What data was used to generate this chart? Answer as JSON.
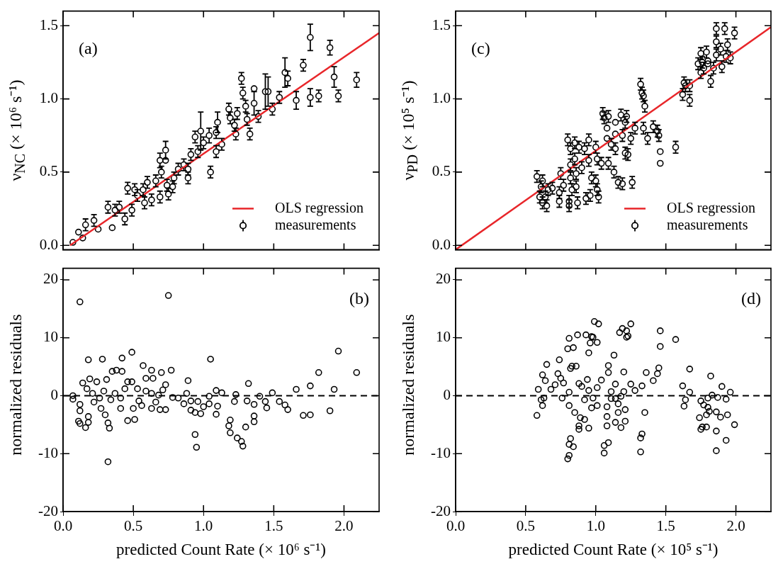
{
  "chart_data": [
    {
      "type": "scatter",
      "ylabel": "ν$_{NC}$ (× 10⁶ s⁻¹)",
      "annotations": [
        "(a)"
      ],
      "xlim": [
        0,
        2.25
      ],
      "ylim": [
        -0.03,
        1.6
      ],
      "xticks": [
        {
          "value": 0,
          "label": null
        },
        {
          "value": 0.5,
          "label": null
        },
        {
          "value": 1,
          "label": null
        },
        {
          "value": 1.5,
          "label": null
        },
        {
          "value": 2,
          "label": null
        }
      ],
      "yticks": [
        {
          "value": 0,
          "label": "0.0"
        },
        {
          "value": 0.5,
          "label": "0.5"
        },
        {
          "value": 1,
          "label": "1.0"
        },
        {
          "value": 1.5,
          "label": "1.5"
        }
      ],
      "tick_labels": "y",
      "legend": "bottom right",
      "series": [
        {
          "name": "OLS regression",
          "type": "line",
          "color": "#e8262a",
          "x": [
            0.05,
            2.25
          ],
          "values": [
            0,
            1.45
          ]
        },
        {
          "name": "measurements",
          "color": "#000000",
          "x": [
            0.07,
            0.11,
            0.16,
            0.14,
            0.22,
            0.25,
            0.32,
            0.35,
            0.37,
            0.4,
            0.44,
            0.46,
            0.49,
            0.51,
            0.53,
            0.57,
            0.58,
            0.6,
            0.63,
            0.66,
            0.69,
            0.69,
            0.7,
            0.73,
            0.73,
            0.74,
            0.75,
            0.78,
            0.79,
            0.82,
            0.86,
            0.89,
            0.89,
            0.91,
            0.94,
            0.96,
            0.98,
            1.0,
            1.04,
            1.05,
            1.09,
            1.09,
            1.1,
            1.13,
            1.18,
            1.19,
            1.22,
            1.23,
            1.24,
            1.27,
            1.28,
            1.3,
            1.31,
            1.33,
            1.36,
            1.36,
            1.39,
            1.44,
            1.46,
            1.49,
            1.54,
            1.58,
            1.6,
            1.66,
            1.71,
            1.76,
            1.76,
            1.82,
            1.9,
            1.93,
            1.96,
            2.09
          ],
          "values": [
            0.02,
            0.09,
            0.14,
            0.05,
            0.17,
            0.11,
            0.26,
            0.12,
            0.24,
            0.26,
            0.18,
            0.39,
            0.24,
            0.38,
            0.34,
            0.38,
            0.29,
            0.43,
            0.31,
            0.44,
            0.58,
            0.33,
            0.5,
            0.65,
            0.58,
            0.41,
            0.35,
            0.4,
            0.46,
            0.52,
            0.55,
            0.52,
            0.46,
            0.62,
            0.74,
            0.64,
            0.78,
            0.7,
            0.75,
            0.5,
            0.77,
            0.64,
            0.84,
            0.69,
            0.93,
            0.87,
            0.82,
            0.76,
            0.9,
            1.14,
            1.04,
            0.95,
            0.86,
            0.76,
            1.07,
            0.97,
            0.88,
            1.05,
            1.05,
            0.93,
            1.01,
            1.18,
            1.14,
            0.99,
            1.23,
            1.01,
            1.42,
            1.02,
            1.35,
            1.15,
            1.02,
            1.13
          ],
          "errors": [
            null,
            null,
            0.04,
            null,
            0.04,
            null,
            0.04,
            null,
            0.04,
            0.04,
            0.04,
            0.04,
            0.04,
            0.04,
            0.04,
            0.04,
            0.04,
            0.04,
            0.04,
            0.04,
            0.05,
            0.04,
            0.04,
            0.06,
            null,
            0.04,
            0.04,
            0.04,
            0.04,
            0.04,
            0.04,
            0.04,
            0.04,
            0.04,
            0.04,
            0.04,
            0.13,
            0.04,
            0.05,
            0.04,
            0.04,
            0.04,
            0.07,
            0.04,
            0.04,
            0.04,
            0.04,
            0.04,
            0.04,
            0.04,
            0.04,
            0.04,
            0.04,
            0.04,
            null,
            0.08,
            0.04,
            0.12,
            0.1,
            0.04,
            0.04,
            0.1,
            0.05,
            0.06,
            0.04,
            0.06,
            0.09,
            0.04,
            0.05,
            0.07,
            0.04,
            0.05
          ],
          "marker": "circle"
        }
      ]
    },
    {
      "type": "scatter",
      "ylabel": "normalized residuals",
      "xlabel": "predicted Count Rate (× 10⁶ s⁻¹)",
      "annotations": [
        "(b)"
      ],
      "xlim": [
        0,
        2.25
      ],
      "ylim": [
        -20,
        22
      ],
      "xticks": [
        {
          "value": 0,
          "label": "0.0"
        },
        {
          "value": 0.5,
          "label": "0.5"
        },
        {
          "value": 1,
          "label": "1.0"
        },
        {
          "value": 1.5,
          "label": "1.5"
        },
        {
          "value": 2,
          "label": "2.0"
        }
      ],
      "yticks": [
        -20,
        -10,
        0,
        10,
        20
      ],
      "marker": "circle",
      "ref_lines": [
        {
          "axis": "y",
          "value": 0,
          "color": "#000000",
          "line_style": "dashed"
        }
      ],
      "series": [
        {
          "color": "#000000",
          "x": [
            0.12,
            0.75,
            0.32,
            0.49,
            0.28,
            0.18,
            0.42,
            1.05,
            1.96,
            2.09,
            1.82,
            0.57,
            0.63,
            0.7,
            0.77,
            0.89,
            1.76,
            1.66,
            1.93,
            1.32,
            1.49,
            1.4,
            1.23,
            1.09,
            1.13,
            1.04,
            0.88,
            0.82,
            0.78,
            0.73,
            0.71,
            0.68,
            0.91,
            0.86,
            0.91,
            0.94,
            0.98,
            0.96,
            1.0,
            1.04,
            1.1,
            1.09,
            0.94,
            0.95,
            1.19,
            1.18,
            1.19,
            1.24,
            1.27,
            1.28,
            1.3,
            1.22,
            1.31,
            1.36,
            1.36,
            1.36,
            1.44,
            1.45,
            1.54,
            1.58,
            1.6,
            1.71,
            1.76,
            1.9,
            0.07,
            0.07,
            0.12,
            0.12,
            0.11,
            0.12,
            0.16,
            0.18,
            0.18,
            0.14,
            0.19,
            0.24,
            0.31,
            0.35,
            0.38,
            0.42,
            0.46,
            0.49,
            0.53,
            0.59,
            0.64,
            0.32,
            0.33,
            0.3,
            0.46,
            0.51,
            0.21,
            0.26,
            0.29,
            0.34,
            0.37,
            0.41,
            0.27,
            0.41,
            0.5,
            0.56,
            0.63,
            0.69,
            0.73,
            0.63,
            0.59,
            0.17,
            0.22,
            0.44,
            0.54,
            0.66
          ],
          "values": [
            16.2,
            17.3,
            -11.4,
            7.5,
            6.3,
            6.2,
            6.5,
            6.3,
            7.7,
            4.0,
            4.0,
            5.2,
            4.4,
            4.0,
            4.4,
            2.6,
            1.7,
            1.1,
            1.1,
            2.1,
            0.5,
            -0.1,
            0.2,
            0.9,
            0.5,
            -0.1,
            0.4,
            -0.4,
            -0.3,
            1.9,
            1.0,
            0.1,
            -0.9,
            -1.4,
            -2.5,
            -2.9,
            -3.1,
            -1.0,
            -1.9,
            -1.4,
            -1.8,
            -3.2,
            -6.7,
            -8.9,
            -4.2,
            -5.2,
            -6.4,
            -7.3,
            -7.9,
            -8.7,
            -5.4,
            -1.0,
            -0.9,
            -1.5,
            -3.5,
            -4.5,
            -1.0,
            -2.1,
            -1.0,
            -1.6,
            -2.4,
            -3.4,
            -3.3,
            -2.6,
            0,
            -0.6,
            -1.5,
            -2.6,
            -4.4,
            -4.8,
            -5.5,
            -4.6,
            -3.6,
            2.2,
            2.9,
            2.4,
            2.8,
            4.2,
            4.4,
            4.2,
            2.4,
            2.4,
            1.2,
            3.0,
            3.0,
            -4.7,
            -5.6,
            -3.3,
            -4.3,
            -4.1,
            0.4,
            -0.4,
            0.8,
            -0.7,
            0.4,
            -0.4,
            -2.2,
            -2.2,
            -2.2,
            -1.7,
            -2.2,
            -2.4,
            -2.4,
            0.4,
            0.8,
            1.2,
            -1.1,
            1.2,
            -0.9,
            -1.1
          ]
        }
      ]
    },
    {
      "type": "scatter",
      "ylabel": "ν$_{PD}$ (× 10⁵ s⁻¹)",
      "annotations": [
        "(c)"
      ],
      "xlim": [
        0,
        2.25
      ],
      "ylim": [
        -0.03,
        1.6
      ],
      "xticks": [
        {
          "value": 0,
          "label": null
        },
        {
          "value": 0.5,
          "label": null
        },
        {
          "value": 1,
          "label": null
        },
        {
          "value": 1.5,
          "label": null
        },
        {
          "value": 2,
          "label": null
        }
      ],
      "yticks": [
        {
          "value": 0,
          "label": "0.0"
        },
        {
          "value": 0.5,
          "label": "0.5"
        },
        {
          "value": 1,
          "label": "1.0"
        },
        {
          "value": 1.5,
          "label": "1.5"
        }
      ],
      "tick_labels": "y",
      "legend": "bottom right",
      "series": [
        {
          "name": "OLS regression",
          "type": "line",
          "color": "#e8262a",
          "x": [
            0,
            2.25
          ],
          "values": [
            -0.03,
            1.49
          ]
        },
        {
          "name": "measurements",
          "color": "#000000",
          "x": [
            0.58,
            0.6,
            0.62,
            0.62,
            0.65,
            0.64,
            0.61,
            0.66,
            0.69,
            0.74,
            0.74,
            0.75,
            0.77,
            0.8,
            0.81,
            0.81,
            0.82,
            0.82,
            0.82,
            0.83,
            0.85,
            0.85,
            0.86,
            0.86,
            0.87,
            0.88,
            0.9,
            0.92,
            0.93,
            0.95,
            0.95,
            0.96,
            0.97,
            1.0,
            1.0,
            1.01,
            1.01,
            1.02,
            1.04,
            1.05,
            1.06,
            1.08,
            1.08,
            1.09,
            1.09,
            1.11,
            1.13,
            1.14,
            1.14,
            1.14,
            1.16,
            1.18,
            1.19,
            1.19,
            1.21,
            1.22,
            1.21,
            1.23,
            1.25,
            1.26,
            1.28,
            1.32,
            1.33,
            1.34,
            1.34,
            1.35,
            1.37,
            1.41,
            1.44,
            1.45,
            1.46,
            1.46,
            1.57,
            1.62,
            1.63,
            1.64,
            1.67,
            1.67,
            1.73,
            1.75,
            1.75,
            1.76,
            1.77,
            1.79,
            1.8,
            1.8,
            1.82,
            1.84,
            1.86,
            1.86,
            1.86,
            1.89,
            1.9,
            1.92,
            1.93,
            1.94,
            1.96,
            1.99
          ],
          "values": [
            0.47,
            0.33,
            0.44,
            0.29,
            0.27,
            0.33,
            0.4,
            0.38,
            0.39,
            0.36,
            0.3,
            0.49,
            0.41,
            0.72,
            0.3,
            0.27,
            0.66,
            0.55,
            0.46,
            0.38,
            0.7,
            0.59,
            0.49,
            0.4,
            0.29,
            0.67,
            0.53,
            0.66,
            0.32,
            0.58,
            0.72,
            0.34,
            0.46,
            0.67,
            0.44,
            0.38,
            0.59,
            0.33,
            0.56,
            0.9,
            0.87,
            0.8,
            0.73,
            0.56,
            0.88,
            0.69,
            0.5,
            0.84,
            0.76,
            0.66,
            0.43,
            0.89,
            0.42,
            0.75,
            0.84,
            0.88,
            0.63,
            0.62,
            0.73,
            0.43,
            0.8,
            1.1,
            1.04,
            1.02,
            0.8,
            0.95,
            0.73,
            0.81,
            0.78,
            0.75,
            0.64,
            0.56,
            0.67,
            1.03,
            1.11,
            1.09,
            0.99,
            1.09,
            1.24,
            1.18,
            1.31,
            1.25,
            1.21,
            1.32,
            1.24,
            1.26,
            1.12,
            1.21,
            1.3,
            1.39,
            1.48,
            1.34,
            1.22,
            1.48,
            1.29,
            1.37,
            1.28,
            1.45
          ],
          "errors": [
            0.04,
            0.04,
            0.04,
            0.04,
            0.04,
            0.04,
            0.04,
            0.04,
            0.04,
            0.04,
            0.04,
            0.04,
            0.04,
            0.04,
            0.04,
            0.04,
            0.04,
            0.04,
            0.04,
            0.04,
            0.04,
            0.04,
            0.04,
            0.04,
            0.04,
            0.04,
            0.04,
            0.04,
            0.04,
            0.04,
            0.04,
            0.04,
            0.04,
            0.04,
            0.04,
            0.04,
            0.04,
            0.04,
            0.04,
            0.04,
            0.04,
            null,
            null,
            0.04,
            0.04,
            0.04,
            0.04,
            null,
            null,
            0.04,
            0.04,
            0.04,
            0.04,
            0.04,
            0.04,
            0.04,
            0.04,
            0.04,
            0.04,
            0.04,
            0.04,
            0.04,
            0.04,
            0.04,
            0.04,
            0.04,
            0.04,
            0.04,
            0.04,
            0.04,
            null,
            null,
            0.04,
            0.04,
            0.04,
            0.04,
            0.04,
            0.04,
            0.04,
            0.04,
            0.04,
            0.04,
            0.04,
            0.04,
            null,
            null,
            0.04,
            0.04,
            0.04,
            0.04,
            0.04,
            0.04,
            0.04,
            0.04,
            0.04,
            0.04,
            0.04,
            0.04
          ],
          "marker": "circle"
        }
      ]
    },
    {
      "type": "scatter",
      "ylabel": "normalized residuals",
      "xlabel": "predicted Count Rate (× 10⁵ s⁻¹)",
      "annotations": [
        "(d)"
      ],
      "xlim": [
        0,
        2.25
      ],
      "ylim": [
        -20,
        22
      ],
      "xticks": [
        {
          "value": 0,
          "label": "0.0"
        },
        {
          "value": 0.5,
          "label": "0.5"
        },
        {
          "value": 1,
          "label": "1.0"
        },
        {
          "value": 1.5,
          "label": "1.5"
        },
        {
          "value": 2,
          "label": "2.0"
        }
      ],
      "yticks": [
        -20,
        -10,
        0,
        10,
        20
      ],
      "marker": "circle",
      "ref_lines": [
        {
          "axis": "y",
          "value": 0,
          "color": "#000000",
          "line_style": "dashed"
        }
      ],
      "series": [
        {
          "color": "#000000",
          "x": [
            0.58,
            0.59,
            0.61,
            0.62,
            0.62,
            0.64,
            0.65,
            0.63,
            0.68,
            0.71,
            0.74,
            0.73,
            0.75,
            0.76,
            0.77,
            0.8,
            0.8,
            0.81,
            0.81,
            0.81,
            0.81,
            0.82,
            0.82,
            0.83,
            0.81,
            0.84,
            0.84,
            0.85,
            0.86,
            0.87,
            0.88,
            0.88,
            0.88,
            0.89,
            0.9,
            0.92,
            0.92,
            0.93,
            0.94,
            0.95,
            0.95,
            0.95,
            0.96,
            0.97,
            0.98,
            0.97,
            0.98,
            0.99,
            1.01,
            1.01,
            1.01,
            1.02,
            1.04,
            1.06,
            1.06,
            1.08,
            1.08,
            1.08,
            1.09,
            1.09,
            1.09,
            1.11,
            1.11,
            1.13,
            1.14,
            1.14,
            1.14,
            1.16,
            1.16,
            1.17,
            1.18,
            1.18,
            1.19,
            1.2,
            1.2,
            1.21,
            1.21,
            1.22,
            1.22,
            1.23,
            1.25,
            1.25,
            1.28,
            1.32,
            1.32,
            1.33,
            1.33,
            1.35,
            1.36,
            1.41,
            1.44,
            1.45,
            1.46,
            1.46,
            1.57,
            1.62,
            1.63,
            1.64,
            1.67,
            1.67,
            1.74,
            1.75,
            1.75,
            1.76,
            1.77,
            1.79,
            1.79,
            1.8,
            1.8,
            1.81,
            1.82,
            1.83,
            1.86,
            1.86,
            1.86,
            1.87,
            1.89,
            1.9,
            1.93,
            1.93,
            1.94,
            1.96,
            1.99
          ],
          "values": [
            -3.4,
            1.1,
            -0.7,
            -1.7,
            3.6,
            2.6,
            5.4,
            -0.4,
            1.1,
            1.9,
            6.2,
            3.8,
            3.0,
            -0.4,
            2.2,
            8.1,
            -10.9,
            -10.3,
            -8.4,
            9.9,
            -1.7,
            -7.4,
            4.7,
            5.1,
            0.6,
            8.3,
            -8.8,
            -2.9,
            5.1,
            10.5,
            2.1,
            -5.2,
            -5.8,
            -3.8,
            1.6,
            -4.1,
            -0.7,
            10.5,
            2.8,
            0.9,
            7.4,
            -5.6,
            9.1,
            10.2,
            10.1,
            -2.1,
            -0.4,
            12.8,
            9.2,
            -1.7,
            1.4,
            12.4,
            2.7,
            -9.9,
            -8.6,
            -1.9,
            -5.2,
            -3.6,
            4.0,
            5.2,
            -8.1,
            0.7,
            -0.5,
            7.0,
            2.0,
            -0.5,
            -4.6,
            -1.4,
            -2.9,
            10.9,
            -5.5,
            -0.1,
            11.6,
            0.7,
            4.1,
            -2.4,
            -4.4,
            11.2,
            10.1,
            10.3,
            12.4,
            2.0,
            0.9,
            -7.3,
            -9.7,
            1.7,
            -6.6,
            -2.9,
            4.0,
            2.6,
            3.8,
            4.8,
            11.2,
            8.5,
            9.7,
            1.7,
            -1.8,
            -0.7,
            4.6,
            0.6,
            -3.8,
            -0.9,
            -5.8,
            -5.4,
            -1.6,
            -3.3,
            -5.4,
            -0.4,
            -2.0,
            -2.7,
            3.4,
            0.1,
            -2.8,
            -9.5,
            -6.1,
            -0.3,
            -3.7,
            1.6,
            -7.7,
            -0.6,
            -3.3,
            0.6,
            -5.0
          ]
        }
      ]
    }
  ]
}
